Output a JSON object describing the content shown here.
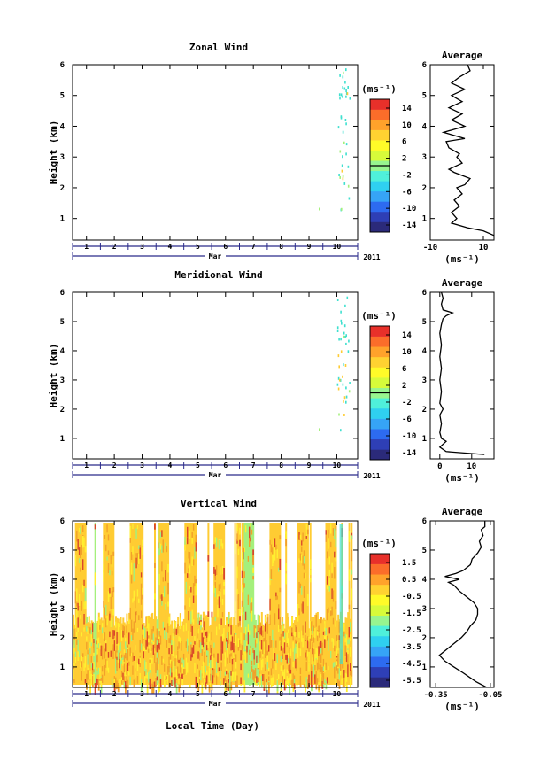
{
  "chart_data": [
    {
      "id": "zonal",
      "type": "heatmap",
      "title": "Zonal Wind",
      "ylabel": "Height (km)",
      "xlabel": "",
      "month_label": "Mar",
      "year_label": "2011",
      "ylim": [
        0.3,
        6
      ],
      "yticks": [
        1,
        2,
        3,
        4,
        5,
        6
      ],
      "xlim": [
        0.5,
        10.75
      ],
      "xticks": [
        1,
        2,
        3,
        4,
        5,
        6,
        7,
        8,
        9,
        10
      ],
      "colorbar": {
        "unit": "(ms⁻¹)",
        "ticks": [
          "14",
          "10",
          "6",
          "2",
          "-2",
          "-6",
          "-10",
          "-14"
        ],
        "range": [
          -16,
          16
        ]
      },
      "fill": {
        "coverage": "sparse",
        "x_start": 9.9,
        "x_end": 10.6,
        "h_top": 6
      },
      "average": {
        "title": "Average",
        "xlabel": "(ms⁻¹)",
        "xlim": [
          -10,
          14
        ],
        "xticks": [
          -10,
          10
        ],
        "profile": [
          [
            0.45,
            14
          ],
          [
            0.6,
            10
          ],
          [
            0.7,
            4
          ],
          [
            0.85,
            -2
          ],
          [
            1.0,
            0
          ],
          [
            1.2,
            -2
          ],
          [
            1.4,
            1
          ],
          [
            1.6,
            -1
          ],
          [
            1.8,
            2
          ],
          [
            2.0,
            0
          ],
          [
            2.1,
            3
          ],
          [
            2.3,
            5
          ],
          [
            2.5,
            -1
          ],
          [
            2.6,
            -3
          ],
          [
            2.8,
            2
          ],
          [
            3.0,
            0
          ],
          [
            3.1,
            1
          ],
          [
            3.3,
            -3
          ],
          [
            3.5,
            -4
          ],
          [
            3.6,
            3
          ],
          [
            3.8,
            -5
          ],
          [
            4.0,
            3
          ],
          [
            4.2,
            -2
          ],
          [
            4.4,
            2
          ],
          [
            4.6,
            -3
          ],
          [
            4.8,
            2
          ],
          [
            5.0,
            -2
          ],
          [
            5.2,
            3
          ],
          [
            5.4,
            -2
          ],
          [
            5.6,
            1
          ],
          [
            5.8,
            5
          ],
          [
            6.0,
            4
          ]
        ]
      }
    },
    {
      "id": "meridional",
      "type": "heatmap",
      "title": "Meridional Wind",
      "ylabel": "Height (km)",
      "xlabel": "",
      "month_label": "Mar",
      "year_label": "2011",
      "ylim": [
        0.3,
        6
      ],
      "yticks": [
        1,
        2,
        3,
        4,
        5,
        6
      ],
      "xlim": [
        0.5,
        10.75
      ],
      "xticks": [
        1,
        2,
        3,
        4,
        5,
        6,
        7,
        8,
        9,
        10
      ],
      "colorbar": {
        "unit": "(ms⁻¹)",
        "ticks": [
          "14",
          "10",
          "6",
          "2",
          "-2",
          "-6",
          "-10",
          "-14"
        ],
        "range": [
          -16,
          16
        ]
      },
      "fill": {
        "coverage": "sparse",
        "x_start": 9.9,
        "x_end": 10.6,
        "h_top": 6
      },
      "average": {
        "title": "Average",
        "xlabel": "(ms⁻¹)",
        "xlim": [
          -3,
          17
        ],
        "xticks": [
          0,
          10
        ],
        "profile": [
          [
            0.45,
            14
          ],
          [
            0.55,
            2
          ],
          [
            0.7,
            0
          ],
          [
            0.9,
            2
          ],
          [
            1.0,
            0.5
          ],
          [
            1.2,
            0
          ],
          [
            1.5,
            0.5
          ],
          [
            1.8,
            0
          ],
          [
            2.0,
            1
          ],
          [
            2.2,
            0
          ],
          [
            2.6,
            0.5
          ],
          [
            3.0,
            0
          ],
          [
            3.4,
            0.5
          ],
          [
            3.8,
            0
          ],
          [
            4.2,
            0.5
          ],
          [
            4.6,
            0
          ],
          [
            4.9,
            0.5
          ],
          [
            5.1,
            1
          ],
          [
            5.2,
            2
          ],
          [
            5.3,
            4
          ],
          [
            5.4,
            1
          ],
          [
            5.6,
            0.5
          ],
          [
            5.8,
            1
          ],
          [
            6.0,
            0.5
          ]
        ]
      }
    },
    {
      "id": "vertical",
      "type": "heatmap",
      "title": "Vertical Wind",
      "ylabel": "Height (km)",
      "xlabel": "Local Time (Day)",
      "month_label": "Mar",
      "year_label": "2011",
      "ylim": [
        0.3,
        6
      ],
      "yticks": [
        1,
        2,
        3,
        4,
        5,
        6
      ],
      "xlim": [
        0.5,
        10.75
      ],
      "xticks": [
        1,
        2,
        3,
        4,
        5,
        6,
        7,
        8,
        9,
        10
      ],
      "colorbar": {
        "unit": "(ms⁻¹)",
        "ticks": [
          "1.5",
          "0.5",
          "-0.5",
          "-1.5",
          "-2.5",
          "-3.5",
          "-4.5",
          "-5.5"
        ],
        "range": [
          -6,
          2
        ]
      },
      "fill": {
        "coverage": "dense",
        "x_start": 0.5,
        "x_end": 10.55,
        "h_top": 6
      },
      "average": {
        "title": "Average",
        "xlabel": "(ms⁻¹)",
        "xlim": [
          -0.38,
          -0.03
        ],
        "xticks": [
          -0.35,
          -0.05
        ],
        "tick_labels": [
          "-0.35",
          "-0.05"
        ],
        "profile": [
          [
            0.3,
            -0.07
          ],
          [
            0.5,
            -0.13
          ],
          [
            0.8,
            -0.2
          ],
          [
            1.0,
            -0.25
          ],
          [
            1.2,
            -0.3
          ],
          [
            1.4,
            -0.33
          ],
          [
            1.6,
            -0.29
          ],
          [
            1.8,
            -0.25
          ],
          [
            2.0,
            -0.21
          ],
          [
            2.2,
            -0.18
          ],
          [
            2.4,
            -0.16
          ],
          [
            2.6,
            -0.13
          ],
          [
            2.8,
            -0.12
          ],
          [
            3.0,
            -0.12
          ],
          [
            3.2,
            -0.14
          ],
          [
            3.4,
            -0.18
          ],
          [
            3.6,
            -0.22
          ],
          [
            3.8,
            -0.25
          ],
          [
            3.9,
            -0.28
          ],
          [
            4.0,
            -0.22
          ],
          [
            4.1,
            -0.3
          ],
          [
            4.2,
            -0.24
          ],
          [
            4.3,
            -0.2
          ],
          [
            4.5,
            -0.16
          ],
          [
            4.7,
            -0.15
          ],
          [
            4.9,
            -0.12
          ],
          [
            5.1,
            -0.1
          ],
          [
            5.3,
            -0.11
          ],
          [
            5.5,
            -0.09
          ],
          [
            5.7,
            -0.1
          ],
          [
            5.8,
            -0.08
          ],
          [
            6.0,
            -0.08
          ]
        ]
      }
    }
  ],
  "colors": {
    "colorscale": [
      "#2b2a7a",
      "#2e3fb6",
      "#2d6bf0",
      "#36a4f6",
      "#2fd0f0",
      "#4ff0da",
      "#97f58f",
      "#d7fb3a",
      "#fffb28",
      "#ffd231",
      "#ffa22b",
      "#fb6d2a",
      "#e8302a"
    ],
    "vertical_base": "#ffcc33",
    "vertical_dark": "#f2a12a",
    "vertical_light": "#ffef30",
    "vertical_green": "#a4f07c",
    "vertical_red": "#d9462a",
    "sparse_teal": "#3fe0cf",
    "time_bar": "#2a2a8a"
  }
}
